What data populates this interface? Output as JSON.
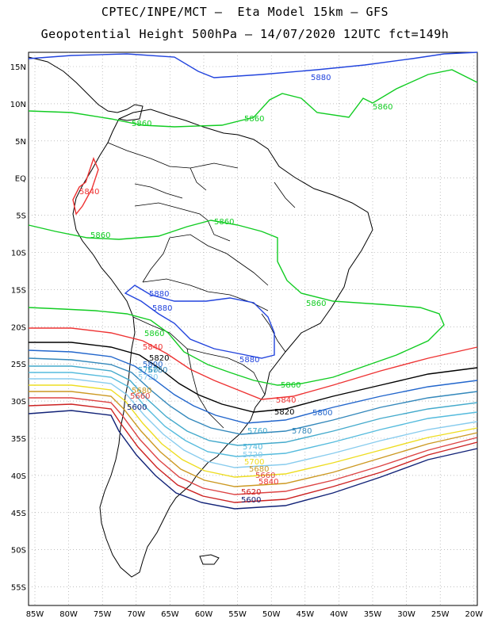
{
  "title_line1": "CPTEC/INPE/MCT –  Eta Model 15km – GFS",
  "title_line2": "Geopotential Height 500hPa – 14/07/2020 12UTC fct=149h",
  "lat_labels": [
    "15N",
    "10N",
    "5N",
    "EQ",
    "5S",
    "10S",
    "15S",
    "20S",
    "25S",
    "30S",
    "35S",
    "40S",
    "45S",
    "50S",
    "55S"
  ],
  "lon_labels": [
    "85W",
    "80W",
    "75W",
    "70W",
    "65W",
    "60W",
    "55W",
    "50W",
    "45W",
    "40W",
    "35W",
    "30W",
    "25W",
    "20W"
  ],
  "contour_colors": {
    "5880": "#2244dd",
    "5860": "#11cc22",
    "5840": "#ee3333",
    "5820": "#000000",
    "5800": "#2266cc",
    "5780": "#3388bb",
    "5760": "#44aacc",
    "5740": "#55bbdd",
    "5720": "#88ccee",
    "5700": "#eedd22",
    "5680": "#cc9922",
    "5660": "#dd4444",
    "5620": "#cc2222",
    "5600": "#112277"
  },
  "contour_labels": [
    "5880",
    "5860",
    "5840",
    "5820",
    "5800",
    "5780",
    "5760",
    "5740",
    "5720",
    "5700",
    "5680",
    "5660",
    "5620",
    "5600"
  ]
}
